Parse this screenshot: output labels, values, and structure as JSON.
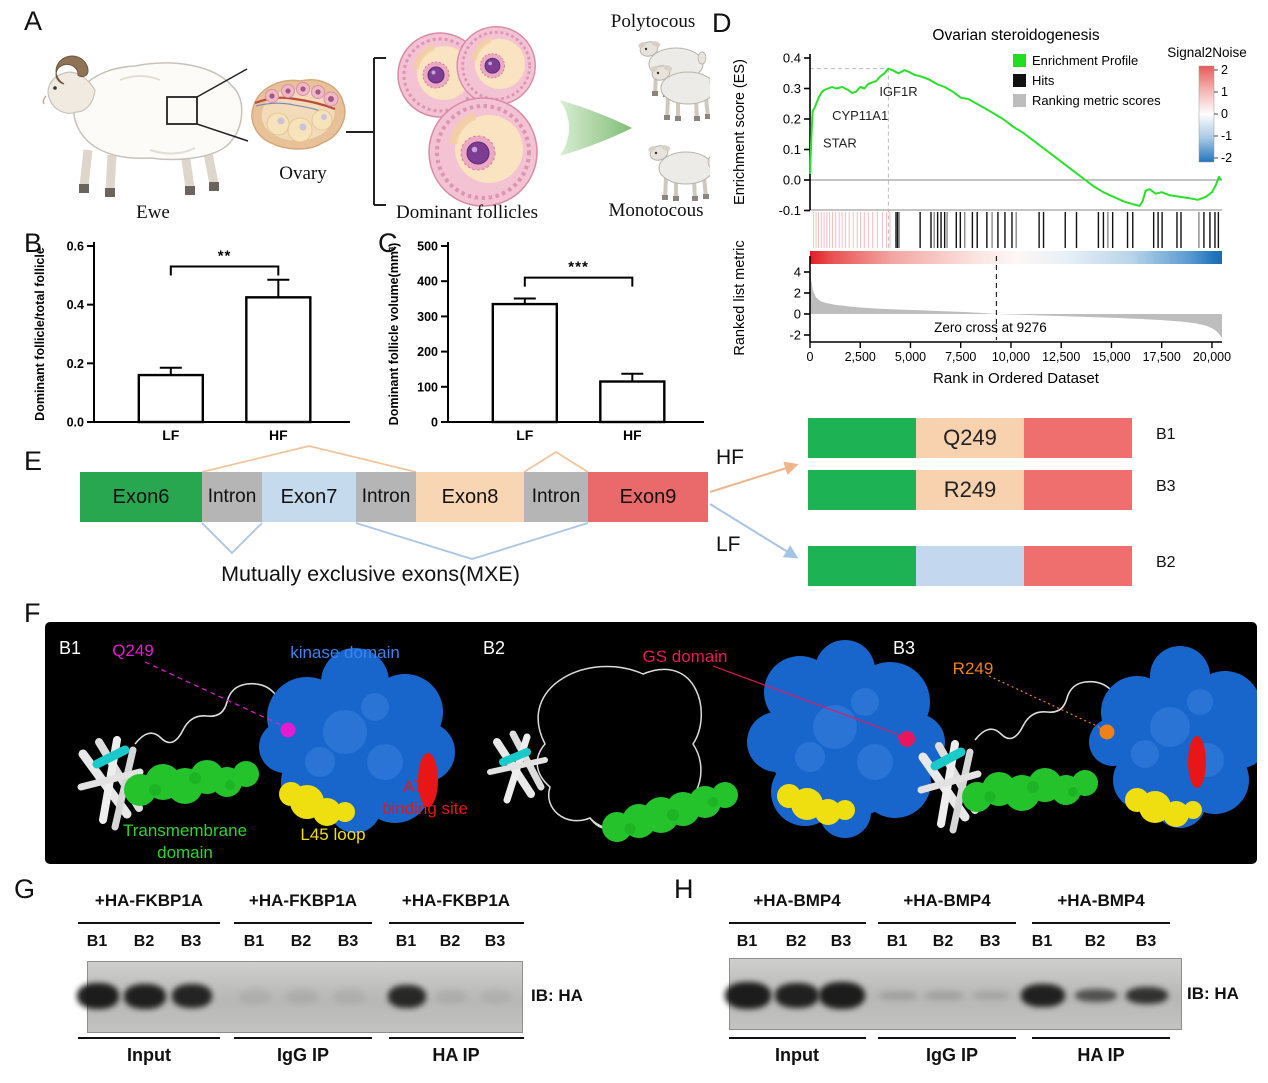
{
  "panels": {
    "a": "A",
    "b": "B",
    "c": "C",
    "d": "D",
    "e": "E",
    "f": "F",
    "g": "G",
    "h": "H"
  },
  "panel_a": {
    "ewe": "Ewe",
    "ovary": "Ovary",
    "dominant_follicles": "Dominant  follicles",
    "polytocous": "Polytocous",
    "monotocous": "Monotocous"
  },
  "chart_data": [
    {
      "id": "panel_b",
      "type": "bar",
      "categories": [
        "LF",
        "HF"
      ],
      "values": [
        0.16,
        0.425
      ],
      "errors": [
        0.025,
        0.06
      ],
      "ylabel": "Dominant follicle/total follicle",
      "ylim": [
        0,
        0.6
      ],
      "yticks": [
        0,
        0.2,
        0.4,
        0.6
      ],
      "ytick_labels": [
        "0.0",
        "0.2",
        "0.4",
        "0.6"
      ],
      "significance": "**",
      "sig_line_y": 0.53
    },
    {
      "id": "panel_c",
      "type": "bar",
      "categories": [
        "LF",
        "HF"
      ],
      "values": [
        335,
        115
      ],
      "errors": [
        16,
        22
      ],
      "ylabel": "Dominant follicle volume(mm³)",
      "ylim": [
        0,
        500
      ],
      "yticks": [
        0,
        100,
        200,
        300,
        400,
        500
      ],
      "ytick_labels": [
        "0",
        "100",
        "200",
        "300",
        "400",
        "500"
      ],
      "significance": "***",
      "sig_line_y": 410
    },
    {
      "id": "panel_d",
      "type": "line",
      "title": "Ovarian steroidogenesis",
      "ylabel_top": "Enrichment score (ES)",
      "ylabel_bottom": "Ranked list metric",
      "xlabel": "Rank in Ordered Dataset",
      "es_ylim": [
        -0.1,
        0.4
      ],
      "es_ytick_vals": [
        0.4,
        0.3,
        0.2,
        0.1,
        0.0,
        -0.1
      ],
      "es_yticks": [
        "0.4",
        "0.3",
        "0.2",
        "0.1",
        "0.0",
        "-0.1"
      ],
      "rlm_ytick_vals": [
        4,
        2,
        0,
        -2
      ],
      "rlm_yticks": [
        "4",
        "2",
        "0",
        "-2"
      ],
      "xlim": [
        0,
        20500
      ],
      "xticks": [
        {
          "v": 0,
          "label": "0"
        },
        {
          "v": 2500,
          "label": "2,500"
        },
        {
          "v": 5000,
          "label": "5,000"
        },
        {
          "v": 7500,
          "label": "7,500"
        },
        {
          "v": 10000,
          "label": "10,000"
        },
        {
          "v": 12500,
          "label": "12,500"
        },
        {
          "v": 15000,
          "label": "15,000"
        },
        {
          "v": 17500,
          "label": "17,500"
        },
        {
          "v": 20000,
          "label": "20,000"
        }
      ],
      "legend": [
        {
          "label": "Enrichment Profile",
          "color": "#22dd22"
        },
        {
          "label": "Hits",
          "color": "#111111"
        },
        {
          "label": "Ranking metric scores",
          "color": "#bdbdbd"
        }
      ],
      "colorbar_title": "Signal2Noise",
      "colorbar_ticks": [
        "2",
        "1",
        "0",
        "-1",
        "-2"
      ],
      "zero_cross_label": "Zero cross at 9276",
      "zero_cross_rank": 9276,
      "peak": {
        "rank": 3900,
        "es": 0.365
      },
      "gene_labels": [
        {
          "text": "STAR",
          "rank": 450,
          "es": 0.152
        },
        {
          "text": "CYP11A1",
          "rank": 900,
          "es": 0.243
        },
        {
          "text": "IGF1R",
          "rank": 3250,
          "es": 0.322
        }
      ],
      "es_curve": [
        [
          0,
          0.02
        ],
        [
          40,
          0.09
        ],
        [
          80,
          0.16
        ],
        [
          130,
          0.225
        ],
        [
          250,
          0.24
        ],
        [
          400,
          0.265
        ],
        [
          550,
          0.285
        ],
        [
          700,
          0.295
        ],
        [
          900,
          0.3
        ],
        [
          1100,
          0.305
        ],
        [
          1300,
          0.3
        ],
        [
          1600,
          0.305
        ],
        [
          1900,
          0.295
        ],
        [
          2100,
          0.285
        ],
        [
          2300,
          0.29
        ],
        [
          2500,
          0.305
        ],
        [
          2700,
          0.3
        ],
        [
          2900,
          0.315
        ],
        [
          3100,
          0.32
        ],
        [
          3300,
          0.325
        ],
        [
          3500,
          0.34
        ],
        [
          3700,
          0.35
        ],
        [
          3900,
          0.365
        ],
        [
          4100,
          0.36
        ],
        [
          4400,
          0.35
        ],
        [
          4700,
          0.36
        ],
        [
          4900,
          0.355
        ],
        [
          5200,
          0.345
        ],
        [
          5500,
          0.34
        ],
        [
          5900,
          0.33
        ],
        [
          6300,
          0.315
        ],
        [
          6700,
          0.305
        ],
        [
          7100,
          0.29
        ],
        [
          7500,
          0.27
        ],
        [
          7900,
          0.265
        ],
        [
          8300,
          0.25
        ],
        [
          8700,
          0.235
        ],
        [
          9100,
          0.22
        ],
        [
          9600,
          0.2
        ],
        [
          10100,
          0.175
        ],
        [
          10600,
          0.155
        ],
        [
          11100,
          0.13
        ],
        [
          11600,
          0.105
        ],
        [
          12100,
          0.08
        ],
        [
          12600,
          0.055
        ],
        [
          13100,
          0.03
        ],
        [
          13600,
          0.005
        ],
        [
          14100,
          -0.02
        ],
        [
          14600,
          -0.04
        ],
        [
          15100,
          -0.055
        ],
        [
          15600,
          -0.07
        ],
        [
          16100,
          -0.08
        ],
        [
          16400,
          -0.085
        ],
        [
          16550,
          -0.07
        ],
        [
          16700,
          -0.035
        ],
        [
          16900,
          -0.03
        ],
        [
          17200,
          -0.045
        ],
        [
          17500,
          -0.04
        ],
        [
          17900,
          -0.05
        ],
        [
          18400,
          -0.055
        ],
        [
          18900,
          -0.06
        ],
        [
          19300,
          -0.065
        ],
        [
          19700,
          -0.055
        ],
        [
          20000,
          -0.04
        ],
        [
          20200,
          -0.015
        ],
        [
          20350,
          0.01
        ],
        [
          20450,
          0.0
        ]
      ],
      "rlm_curve": [
        [
          0,
          4.3
        ],
        [
          60,
          3.2
        ],
        [
          150,
          2.2
        ],
        [
          300,
          1.6
        ],
        [
          500,
          1.25
        ],
        [
          800,
          1.05
        ],
        [
          1200,
          0.9
        ],
        [
          1800,
          0.75
        ],
        [
          2500,
          0.62
        ],
        [
          3500,
          0.5
        ],
        [
          4500,
          0.42
        ],
        [
          5500,
          0.35
        ],
        [
          6500,
          0.28
        ],
        [
          7500,
          0.2
        ],
        [
          8500,
          0.1
        ],
        [
          9276,
          0
        ],
        [
          10500,
          -0.08
        ],
        [
          12000,
          -0.17
        ],
        [
          13500,
          -0.26
        ],
        [
          15000,
          -0.36
        ],
        [
          16500,
          -0.48
        ],
        [
          17500,
          -0.58
        ],
        [
          18500,
          -0.72
        ],
        [
          19200,
          -0.9
        ],
        [
          19700,
          -1.1
        ],
        [
          20000,
          -1.35
        ],
        [
          20200,
          -1.6
        ],
        [
          20350,
          -1.9
        ],
        [
          20500,
          -2.3
        ]
      ],
      "hits": [
        [
          180,
          "p"
        ],
        [
          300,
          "p"
        ],
        [
          420,
          "p"
        ],
        [
          560,
          "p"
        ],
        [
          700,
          "p"
        ],
        [
          840,
          "p"
        ],
        [
          980,
          "p"
        ],
        [
          1120,
          "p"
        ],
        [
          1280,
          "p"
        ],
        [
          1450,
          "p"
        ],
        [
          1600,
          "p"
        ],
        [
          1760,
          "p"
        ],
        [
          1950,
          "p"
        ],
        [
          2150,
          "p"
        ],
        [
          2350,
          "p"
        ],
        [
          2520,
          "p"
        ],
        [
          2700,
          "p"
        ],
        [
          2900,
          "p"
        ],
        [
          3120,
          "p"
        ],
        [
          3350,
          "p"
        ],
        [
          3600,
          "p"
        ],
        [
          3800,
          "p"
        ],
        [
          3980,
          "p"
        ],
        [
          4280,
          "k"
        ],
        [
          4360,
          "k"
        ],
        [
          4440,
          "g"
        ],
        [
          5480,
          "k"
        ],
        [
          6020,
          "k"
        ],
        [
          6180,
          "g"
        ],
        [
          6350,
          "k"
        ],
        [
          6520,
          "k"
        ],
        [
          6700,
          "k"
        ],
        [
          6820,
          "g"
        ],
        [
          7280,
          "k"
        ],
        [
          7480,
          "k"
        ],
        [
          7700,
          "g"
        ],
        [
          8080,
          "k"
        ],
        [
          8320,
          "k"
        ],
        [
          8800,
          "k"
        ],
        [
          9060,
          "g"
        ],
        [
          9350,
          "k"
        ],
        [
          9700,
          "k"
        ],
        [
          10050,
          "k"
        ],
        [
          10260,
          "g"
        ],
        [
          11400,
          "k"
        ],
        [
          11620,
          "k"
        ],
        [
          12700,
          "k"
        ],
        [
          13260,
          "k"
        ],
        [
          14350,
          "k"
        ],
        [
          14600,
          "k"
        ],
        [
          14820,
          "g"
        ],
        [
          15060,
          "k"
        ],
        [
          15800,
          "k"
        ],
        [
          16060,
          "k"
        ],
        [
          17100,
          "k"
        ],
        [
          17320,
          "k"
        ],
        [
          17520,
          "k"
        ],
        [
          18260,
          "k"
        ],
        [
          18460,
          "k"
        ],
        [
          19350,
          "g"
        ],
        [
          19600,
          "k"
        ],
        [
          19900,
          "k"
        ],
        [
          20150,
          "k"
        ],
        [
          20320,
          "k"
        ]
      ]
    }
  ],
  "panel_e": {
    "boxes": [
      {
        "label": "Exon6",
        "color": "#29a750"
      },
      {
        "label": "Intron",
        "color": "#b5b5b5"
      },
      {
        "label": "Exon7",
        "color": "#c6daee"
      },
      {
        "label": "Intron",
        "color": "#b5b5b5"
      },
      {
        "label": "Exon8",
        "color": "#f8d5b3"
      },
      {
        "label": "Intron",
        "color": "#b5b5b5"
      },
      {
        "label": "Exon9",
        "color": "#ea696a"
      }
    ],
    "mxe": "Mutually exclusive exons(MXE)",
    "hf": "HF",
    "lf": "LF",
    "isoforms": [
      {
        "name": "B1",
        "mid": "Q249",
        "colors": [
          "#1db254",
          "#f8d2ae",
          "#ef6f6e"
        ]
      },
      {
        "name": "B3",
        "mid": "R249",
        "colors": [
          "#1db254",
          "#f8d2ae",
          "#ef6f6e"
        ]
      },
      {
        "name": "B2",
        "mid": "",
        "colors": [
          "#1db254",
          "#c3d8ee",
          "#ef6f6e"
        ]
      }
    ]
  },
  "panel_f": {
    "b1": "B1",
    "b2": "B2",
    "b3": "B3",
    "labels": {
      "q249": "Q249",
      "q249_color": "#e41bd0",
      "kinase": "kinase domain",
      "kinase_color": "#3b82f0",
      "atp1": "ATP",
      "atp2": "binding site",
      "atp_color": "#e81616",
      "l45": "L45 loop",
      "l45_color": "#f0df10",
      "tm1": "Transmembrane",
      "tm2": "domain",
      "tm_color": "#2fd32f",
      "gs": "GS domain",
      "gs_color": "#e8175d",
      "r249": "R249",
      "r249_color": "#f08018"
    }
  },
  "panel_g": {
    "header": "+HA-FKBP1A",
    "lanes": [
      "B1",
      "B2",
      "B3"
    ],
    "groups": [
      "Input",
      "IgG IP",
      "HA IP"
    ],
    "ib": "IB: HA",
    "bands": [
      [
        {
          "o": 0.95,
          "w": 42,
          "h": 26
        },
        {
          "o": 0.93,
          "w": 42,
          "h": 25
        },
        {
          "o": 0.9,
          "w": 40,
          "h": 24
        }
      ],
      [
        {
          "o": 0.06,
          "w": 32,
          "h": 16
        },
        {
          "o": 0.07,
          "w": 32,
          "h": 16
        },
        {
          "o": 0.06,
          "w": 32,
          "h": 16
        }
      ],
      [
        {
          "o": 0.88,
          "w": 38,
          "h": 23
        },
        {
          "o": 0.07,
          "w": 30,
          "h": 14
        },
        {
          "o": 0.05,
          "w": 30,
          "h": 14
        }
      ]
    ]
  },
  "panel_h": {
    "header": "+HA-BMP4",
    "lanes": [
      "B1",
      "B2",
      "B3"
    ],
    "groups": [
      "Input",
      "IgG IP",
      "HA IP"
    ],
    "ib": "IB: HA",
    "bands": [
      [
        {
          "o": 0.95,
          "w": 46,
          "h": 27
        },
        {
          "o": 0.92,
          "w": 44,
          "h": 25
        },
        {
          "o": 0.95,
          "w": 46,
          "h": 27
        }
      ],
      [
        {
          "o": 0.14,
          "w": 38,
          "h": 9
        },
        {
          "o": 0.14,
          "w": 38,
          "h": 9
        },
        {
          "o": 0.12,
          "w": 36,
          "h": 8
        }
      ],
      [
        {
          "o": 0.92,
          "w": 44,
          "h": 23
        },
        {
          "o": 0.62,
          "w": 42,
          "h": 13
        },
        {
          "o": 0.82,
          "w": 42,
          "h": 17
        }
      ]
    ]
  }
}
